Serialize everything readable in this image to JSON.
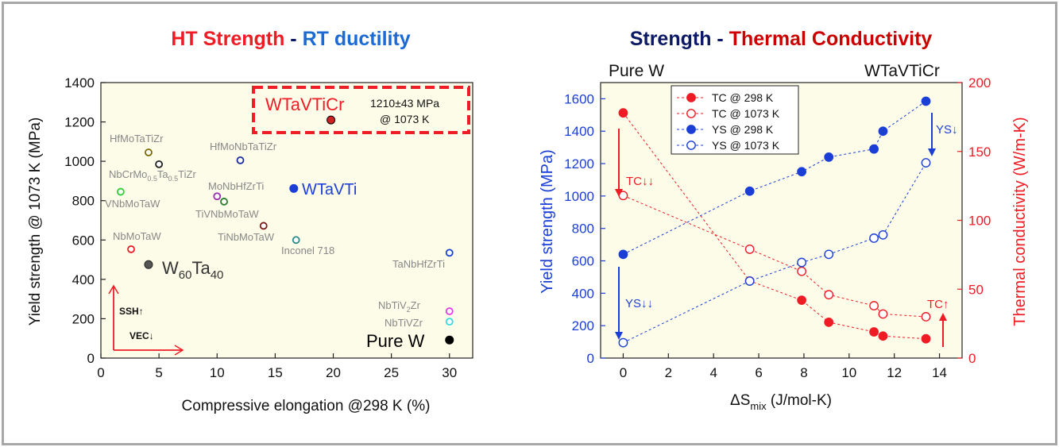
{
  "left_title": {
    "part1": "HT Strength",
    "sep": " - ",
    "part2": "RT ductility"
  },
  "right_title": {
    "part1": "Strength",
    "sep": " - ",
    "part2": "Thermal Conductivity"
  },
  "colors": {
    "red": "#ee1c25",
    "blue": "#1b3fd6",
    "navy": "#0c1a66",
    "dark_red": "#cc0000",
    "plot_bg": "#fdfce9"
  },
  "chart_data": [
    {
      "type": "scatter",
      "xlabel": "Compressive elongation @298 K (%)",
      "ylabel": "Yield strength @ 1073 K (MPa)",
      "xlim": [
        0,
        32
      ],
      "ylim": [
        0,
        1400
      ],
      "xticks": [
        "0",
        "5",
        "10",
        "15",
        "20",
        "25",
        "30"
      ],
      "yticks": [
        "0",
        "200",
        "400",
        "600",
        "800",
        "1000",
        "1200",
        "1400"
      ],
      "grid": false,
      "points": [
        {
          "label": "WTaVTiCr",
          "x": 19.8,
          "y": 1210,
          "fill": "#cc2222",
          "stroke": "#000000",
          "filled": true
        },
        {
          "label": "HfMoTaTiZr",
          "x": 4.1,
          "y": 1045,
          "fill": "none",
          "stroke": "#7a6a00",
          "filled": false
        },
        {
          "label": "NbCrMo0.5Ta0.5TiZr",
          "x": 5.0,
          "y": 985,
          "fill": "none",
          "stroke": "#222222",
          "filled": false
        },
        {
          "label": "HfMoNbTaTiZr",
          "x": 12.0,
          "y": 1005,
          "fill": "none",
          "stroke": "#1a2a9a",
          "filled": false
        },
        {
          "label": "WTaVTi",
          "x": 16.6,
          "y": 862,
          "fill": "#1b3fd6",
          "stroke": "#1b3fd6",
          "filled": true
        },
        {
          "label": "VNbMoTaW",
          "x": 1.7,
          "y": 845,
          "fill": "none",
          "stroke": "#33cc33",
          "filled": false
        },
        {
          "label": "MoNbHfZrTi",
          "x": 10.0,
          "y": 822,
          "fill": "none",
          "stroke": "#9b2fae",
          "filled": false
        },
        {
          "label": "TiVNbMoTaW",
          "x": 10.6,
          "y": 795,
          "fill": "none",
          "stroke": "#2a7a2a",
          "filled": false
        },
        {
          "label": "TiNbMoTaW",
          "x": 14.0,
          "y": 672,
          "fill": "none",
          "stroke": "#7a1a1a",
          "filled": false
        },
        {
          "label": "Inconel 718",
          "x": 16.8,
          "y": 600,
          "fill": "none",
          "stroke": "#2a8a8a",
          "filled": false
        },
        {
          "label": "NbMoTaW",
          "x": 2.6,
          "y": 553,
          "fill": "none",
          "stroke": "#ee1c25",
          "filled": false
        },
        {
          "label": "TaNbHfZrTi",
          "x": 30.0,
          "y": 535,
          "fill": "none",
          "stroke": "#1b3fd6",
          "filled": false
        },
        {
          "label": "W60Ta40",
          "x": 4.1,
          "y": 475,
          "fill": "#555555",
          "stroke": "#222222",
          "filled": true
        },
        {
          "label": "NbTiV2Zr",
          "x": 30.0,
          "y": 238,
          "fill": "none",
          "stroke": "#e040e0",
          "filled": false
        },
        {
          "label": "NbTiVZr",
          "x": 30.0,
          "y": 185,
          "fill": "none",
          "stroke": "#33dddd",
          "filled": false
        },
        {
          "label": "Pure W",
          "x": 30.0,
          "y": 92,
          "fill": "#000000",
          "stroke": "#000000",
          "filled": true
        }
      ],
      "annotations": {
        "wtavticr_value": "1210±43 MPa",
        "wtavticr_temp": "@ 1073 K",
        "ssh": "SSH↑",
        "vec": "VEC↓"
      }
    },
    {
      "type": "line",
      "xlabel": "ΔS mix (J/mol-K)",
      "ylabel_left": "Yield strength (MPa)",
      "ylabel_right": "Thermal conductivity (W/m-K)",
      "xlim": [
        -1,
        15
      ],
      "ylim_left": [
        0,
        1700
      ],
      "ylim_right": [
        0,
        200
      ],
      "xticks": [
        "0",
        "2",
        "4",
        "6",
        "8",
        "10",
        "12",
        "14"
      ],
      "yticks_left": [
        "0",
        "200",
        "400",
        "600",
        "800",
        "1000",
        "1200",
        "1400",
        "1600"
      ],
      "yticks_right": [
        "0",
        "50",
        "100",
        "150",
        "200"
      ],
      "grid": false,
      "legend_position": "top-center",
      "x": [
        0,
        5.6,
        7.9,
        9.1,
        11.1,
        11.5,
        13.4
      ],
      "series": [
        {
          "name": "TC @ 298 K",
          "axis": "right",
          "color": "#ee1c25",
          "filled": true,
          "values": [
            178,
            56,
            42,
            26,
            19,
            16,
            14
          ]
        },
        {
          "name": "TC @ 1073 K",
          "axis": "right",
          "color": "#ee1c25",
          "filled": false,
          "values": [
            118,
            79,
            63,
            46,
            38,
            32,
            30
          ]
        },
        {
          "name": "YS @ 298 K",
          "axis": "left",
          "color": "#1b3fd6",
          "filled": true,
          "values": [
            640,
            1030,
            1150,
            1240,
            1290,
            1400,
            1585
          ]
        },
        {
          "name": "YS @ 1073 K",
          "axis": "left",
          "color": "#1b3fd6",
          "filled": false,
          "values": [
            95,
            475,
            590,
            640,
            740,
            760,
            1205
          ]
        }
      ],
      "annotations": {
        "pure_w": "Pure W",
        "wtavticr": "WTaVTiCr",
        "tc_down": "TC↓↓",
        "ys_down": "YS↓↓",
        "ys_down_single": "YS↓",
        "tc_up": "TC↑"
      }
    }
  ]
}
